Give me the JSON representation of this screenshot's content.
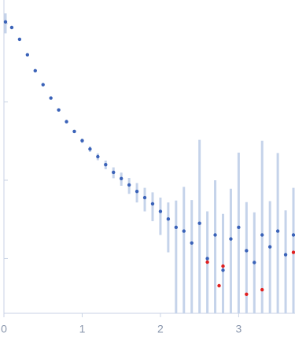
{
  "chart_data": {
    "type": "scatter",
    "log_y": true,
    "xlim": [
      0,
      3.72
    ],
    "xticks": [
      0,
      1,
      2,
      3
    ],
    "ylim": [
      0.0002,
      2
    ],
    "yticks": [
      0.001,
      0.01,
      0.1,
      1
    ],
    "series": [
      {
        "color": "#3a62b8",
        "error_color": "#c5d3ea",
        "x": [
          0.02,
          0.1,
          0.2,
          0.3,
          0.4,
          0.5,
          0.6,
          0.7,
          0.8,
          0.9,
          1.0,
          1.1,
          1.2,
          1.3,
          1.4,
          1.5,
          1.6,
          1.7,
          1.8,
          1.9,
          2.0,
          2.1,
          2.2,
          2.3,
          2.4,
          2.5,
          2.6,
          2.7,
          2.8,
          2.9,
          3.0,
          3.1,
          3.2,
          3.3,
          3.4,
          3.5,
          3.6,
          3.7
        ],
        "values": [
          1.05,
          0.89,
          0.63,
          0.4,
          0.25,
          0.166,
          0.112,
          0.079,
          0.056,
          0.042,
          0.032,
          0.025,
          0.02,
          0.0158,
          0.0126,
          0.0105,
          0.0087,
          0.0072,
          0.006,
          0.005,
          0.004,
          0.0032,
          0.0025,
          0.00224,
          0.00158,
          0.00282,
          0.001,
          0.002,
          0.00071,
          0.00178,
          0.0025,
          0.00126,
          0.00089,
          0.002,
          0.00141,
          0.00224,
          0.00112,
          0.002
        ],
        "errors": [
          0.3,
          0.02,
          0.01,
          0.006,
          0.004,
          0.003,
          0.002,
          0.002,
          0.002,
          0.002,
          0.002,
          0.002,
          0.002,
          0.002,
          0.002,
          0.002,
          0.002,
          0.002,
          0.002,
          0.002,
          0.002,
          0.002,
          0.003,
          0.006,
          0.004,
          0.03,
          0.003,
          0.008,
          0.003,
          0.006,
          0.02,
          0.004,
          0.003,
          0.03,
          0.004,
          0.02,
          0.003,
          0.006
        ]
      },
      {
        "color": "#e02020",
        "x": [
          2.6,
          2.75,
          2.8,
          3.1,
          3.3,
          3.7
        ],
        "values": [
          0.0009,
          0.00045,
          0.0008,
          0.00035,
          0.0004,
          0.0012
        ]
      }
    ]
  }
}
